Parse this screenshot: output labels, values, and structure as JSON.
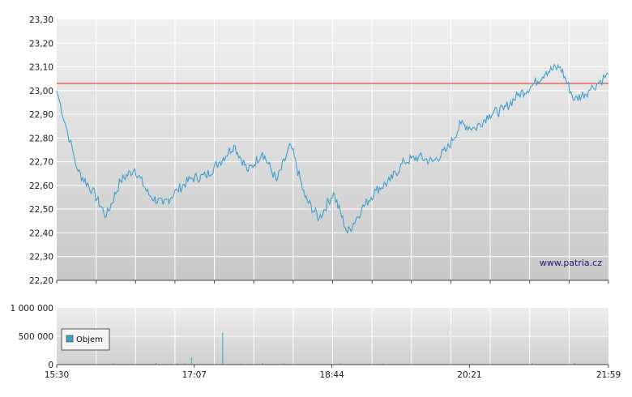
{
  "watermark": "www.patria.cz",
  "colors": {
    "price_line": "#3f9fcb",
    "reference_line": "#e0533f",
    "volume_bar": "#3f9fcb",
    "legend_swatch": "#3f9fcb"
  },
  "chart_data": [
    {
      "type": "line",
      "name": "price",
      "ylim": [
        22.2,
        23.3
      ],
      "yticks": [
        "23,30",
        "23,20",
        "23,10",
        "23,00",
        "22,90",
        "22,80",
        "22,70",
        "22,60",
        "22,50",
        "22,40",
        "22,30",
        "22,20"
      ],
      "reference_value": 23.03,
      "x": [
        "15:30",
        "15:45",
        "15:55",
        "16:05",
        "16:15",
        "16:25",
        "16:35",
        "16:45",
        "16:55",
        "17:05",
        "17:15",
        "17:25",
        "17:35",
        "17:45",
        "17:55",
        "18:05",
        "18:15",
        "18:25",
        "18:35",
        "18:45",
        "18:55",
        "19:05",
        "19:15",
        "19:25",
        "19:35",
        "19:45",
        "19:55",
        "20:05",
        "20:15",
        "20:25",
        "20:35",
        "20:45",
        "20:55",
        "21:05",
        "21:15",
        "21:25",
        "21:35",
        "21:45",
        "21:59"
      ],
      "values": [
        23.0,
        22.66,
        22.58,
        22.47,
        22.62,
        22.67,
        22.56,
        22.52,
        22.58,
        22.63,
        22.64,
        22.7,
        22.77,
        22.66,
        22.74,
        22.62,
        22.77,
        22.55,
        22.46,
        22.57,
        22.4,
        22.5,
        22.58,
        22.62,
        22.7,
        22.72,
        22.7,
        22.75,
        22.86,
        22.84,
        22.9,
        22.92,
        22.98,
        23.02,
        23.08,
        23.1,
        22.96,
        23.0,
        23.07
      ]
    },
    {
      "type": "bar",
      "name": "volume",
      "ylim": [
        0,
        1000000
      ],
      "yticks": [
        "1 000 000",
        "500 000",
        "0"
      ],
      "legend": "Objem",
      "xticks": [
        "15:30",
        "17:07",
        "18:44",
        "20:21",
        "21:59"
      ],
      "x": [
        "16:10",
        "16:40",
        "16:55",
        "17:00",
        "17:05",
        "17:27",
        "17:40",
        "17:55",
        "18:10",
        "18:50",
        "19:20",
        "20:30",
        "21:05",
        "21:35"
      ],
      "values": [
        20000,
        30000,
        25000,
        20000,
        120000,
        560000,
        15000,
        30000,
        18000,
        20000,
        15000,
        15000,
        25000,
        30000
      ]
    }
  ]
}
